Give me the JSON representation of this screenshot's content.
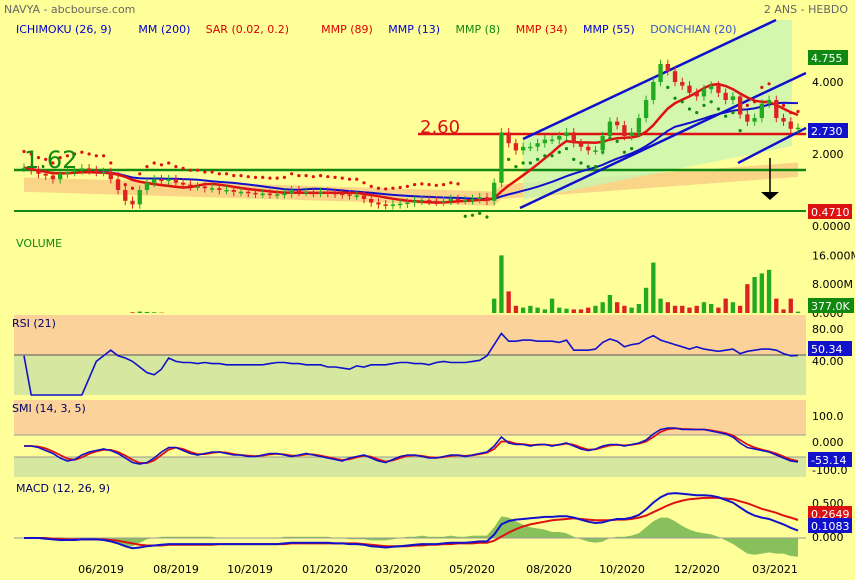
{
  "header": {
    "left": "NAVYA - abcbourse.com",
    "right": "2 ANS - HEBDO"
  },
  "colors": {
    "background": "#ffff99",
    "up": "#22aa22",
    "down": "#dd2222",
    "blue": "#1111cc",
    "red": "#dd1111",
    "green": "#118811",
    "rsi_upper": "#fad29a",
    "rsi_lower": "#d6e8a0"
  },
  "chart_data": [
    {
      "type": "candlestick",
      "indicators": [
        {
          "label": "ICHIMOKU (26, 9)",
          "color": "#0000cc"
        },
        {
          "label": "MM (200)",
          "color": "#0000cc"
        },
        {
          "label": "SAR (0.02, 0.2)",
          "color": "#dd0000"
        },
        {
          "label": "MMP (89)",
          "color": "#dd0000"
        },
        {
          "label": "MMP (13)",
          "color": "#0000cc"
        },
        {
          "label": "MMP (8)",
          "color": "#118811"
        },
        {
          "label": "MMP (34)",
          "color": "#dd0000"
        },
        {
          "label": "MMP (55)",
          "color": "#0000cc"
        },
        {
          "label": "DONCHIAN (20)",
          "color": "#3355cc"
        }
      ],
      "y_ticks": [
        "4.000",
        "2.000",
        "0.0000"
      ],
      "last_price": "2.730",
      "high_label": "4.755",
      "low_label": "0.4710",
      "annotations": [
        "1.62",
        "2.60"
      ],
      "x_ticks": [
        "06/2019",
        "08/2019",
        "10/2019",
        "01/2020",
        "03/2020",
        "05/2020",
        "08/2020",
        "10/2020",
        "12/2020",
        "03/2021"
      ],
      "close": [
        1.62,
        1.55,
        1.45,
        1.4,
        1.3,
        1.45,
        1.5,
        1.55,
        1.6,
        1.55,
        1.5,
        1.5,
        1.3,
        1.0,
        0.7,
        0.6,
        1.0,
        1.2,
        1.3,
        1.25,
        1.3,
        1.2,
        1.15,
        1.1,
        1.1,
        1.05,
        1.05,
        1.0,
        1.0,
        0.95,
        0.95,
        0.92,
        0.9,
        0.9,
        0.88,
        0.88,
        0.9,
        1.0,
        0.95,
        0.95,
        0.92,
        0.95,
        0.92,
        0.9,
        0.88,
        0.85,
        0.85,
        0.75,
        0.65,
        0.6,
        0.58,
        0.6,
        0.62,
        0.65,
        0.7,
        0.72,
        0.7,
        0.68,
        0.7,
        0.75,
        0.72,
        0.72,
        0.75,
        0.8,
        0.7,
        1.2,
        2.6,
        2.3,
        2.1,
        2.2,
        2.2,
        2.3,
        2.4,
        2.4,
        2.5,
        2.6,
        2.3,
        2.2,
        2.1,
        2.1,
        2.5,
        2.9,
        2.8,
        2.5,
        2.6,
        3.0,
        3.5,
        4.0,
        4.5,
        4.3,
        4.0,
        3.9,
        3.7,
        3.6,
        3.8,
        3.9,
        3.7,
        3.5,
        3.6,
        3.1,
        2.9,
        3.0,
        3.4,
        3.5,
        3.0,
        2.9,
        2.7,
        2.73
      ],
      "volume": [
        0,
        0,
        0,
        0,
        0,
        0,
        0,
        0,
        0,
        0,
        0,
        0,
        0,
        0,
        0,
        0.2,
        0.4,
        0.3,
        0.2,
        0.1,
        0,
        0,
        0,
        0,
        0,
        0,
        0,
        0,
        0,
        0,
        0,
        0,
        0,
        0,
        0,
        0,
        0,
        0,
        0,
        0,
        0,
        0,
        0,
        0,
        0,
        0,
        0,
        0,
        0,
        0,
        0,
        0,
        0,
        0,
        0,
        0,
        0,
        0,
        0,
        0,
        0,
        0,
        0,
        0,
        0,
        4.0,
        16.0,
        6.0,
        2.0,
        1.5,
        2.0,
        1.5,
        1.0,
        4.0,
        1.5,
        1.2,
        1.0,
        1.0,
        1.5,
        2.0,
        3.0,
        5.0,
        3.0,
        2.0,
        1.5,
        2.5,
        7.0,
        14.0,
        4.0,
        3.0,
        2.0,
        2.0,
        1.5,
        2.0,
        3.0,
        2.5,
        1.5,
        4.0,
        3.0,
        2.0,
        8.0,
        10.0,
        11.0,
        12.0,
        4.0,
        1.0,
        4.0,
        0.377
      ],
      "volume_ticks": [
        "16.000M",
        "8.000M",
        "0.000"
      ],
      "volume_last": "377.0K",
      "volume_title": "VOLUME"
    },
    {
      "type": "line",
      "title": "RSI (21)",
      "y_ticks": [
        "80.00",
        "40.00"
      ],
      "last": "50.34",
      "values": [
        50,
        15,
        15,
        15,
        15,
        15,
        15,
        15,
        15,
        30,
        45,
        50,
        55,
        50,
        48,
        45,
        40,
        35,
        33,
        38,
        48,
        45,
        44,
        44,
        43,
        44,
        43,
        43,
        42,
        42,
        42,
        42,
        42,
        42,
        43,
        44,
        44,
        43,
        43,
        42,
        42,
        42,
        40,
        40,
        39,
        38,
        41,
        40,
        42,
        42,
        42,
        43,
        44,
        44,
        43,
        43,
        42,
        44,
        45,
        44,
        44,
        44,
        45,
        46,
        50,
        60,
        70,
        63,
        63,
        64,
        64,
        63,
        63,
        63,
        62,
        64,
        55,
        55,
        55,
        56,
        62,
        65,
        63,
        58,
        60,
        61,
        65,
        68,
        64,
        62,
        60,
        58,
        56,
        58,
        56,
        55,
        54,
        55,
        56,
        52,
        54,
        55,
        56,
        56,
        55,
        52,
        50,
        50.34
      ]
    },
    {
      "type": "line",
      "title": "SMI (14, 3, 5)",
      "y_ticks": [
        "100.0",
        "0.000",
        "-100.0"
      ],
      "last": "-53.14",
      "series": [
        {
          "name": "SMI",
          "values": [
            0,
            0,
            -5,
            -15,
            -25,
            -40,
            -50,
            -45,
            -30,
            -20,
            -15,
            -10,
            -15,
            -25,
            -40,
            -55,
            -60,
            -55,
            -40,
            -20,
            -5,
            -5,
            -15,
            -25,
            -30,
            -25,
            -20,
            -20,
            -25,
            -30,
            -30,
            -35,
            -35,
            -30,
            -25,
            -25,
            -30,
            -35,
            -30,
            -25,
            -30,
            -35,
            -40,
            -45,
            -50,
            -40,
            -35,
            -30,
            -40,
            -50,
            -55,
            -45,
            -35,
            -30,
            -30,
            -35,
            -40,
            -40,
            -35,
            -30,
            -30,
            -35,
            -30,
            -25,
            -20,
            0,
            30,
            10,
            5,
            5,
            0,
            5,
            5,
            0,
            5,
            10,
            0,
            -10,
            -15,
            -10,
            0,
            5,
            5,
            0,
            5,
            10,
            20,
            40,
            55,
            60,
            60,
            55,
            55,
            55,
            55,
            50,
            45,
            40,
            30,
            10,
            -5,
            -10,
            -15,
            -20,
            -30,
            -40,
            -50,
            -53.14
          ]
        },
        {
          "name": "Signal",
          "values": [
            0,
            0,
            -2,
            -8,
            -18,
            -30,
            -42,
            -46,
            -38,
            -26,
            -18,
            -13,
            -13,
            -20,
            -32,
            -46,
            -56,
            -57,
            -48,
            -30,
            -12,
            -5,
            -10,
            -20,
            -27,
            -27,
            -23,
            -20,
            -22,
            -27,
            -30,
            -32,
            -34,
            -32,
            -28,
            -26,
            -28,
            -32,
            -32,
            -28,
            -28,
            -32,
            -37,
            -42,
            -47,
            -44,
            -38,
            -32,
            -36,
            -45,
            -52,
            -48,
            -40,
            -33,
            -31,
            -33,
            -37,
            -39,
            -37,
            -33,
            -31,
            -33,
            -31,
            -27,
            -22,
            -10,
            15,
            15,
            8,
            6,
            3,
            4,
            5,
            2,
            4,
            8,
            4,
            -5,
            -12,
            -11,
            -4,
            2,
            4,
            2,
            4,
            8,
            15,
            30,
            47,
            56,
            59,
            57,
            56,
            55,
            55,
            52,
            48,
            43,
            35,
            20,
            5,
            -5,
            -12,
            -18,
            -25,
            -35,
            -45,
            -50
          ]
        }
      ]
    },
    {
      "type": "line",
      "title": "MACD (12, 26, 9)",
      "y_ticks": [
        "0.500",
        "0.000"
      ],
      "last_macd": "0.1083",
      "last_signal": "0.2649",
      "series": [
        {
          "name": "MACD",
          "values": [
            0,
            0,
            0,
            -0.01,
            -0.02,
            -0.03,
            -0.03,
            -0.03,
            -0.02,
            -0.02,
            -0.02,
            -0.03,
            -0.05,
            -0.08,
            -0.12,
            -0.15,
            -0.14,
            -0.12,
            -0.11,
            -0.1,
            -0.09,
            -0.09,
            -0.09,
            -0.09,
            -0.09,
            -0.09,
            -0.09,
            -0.09,
            -0.09,
            -0.09,
            -0.09,
            -0.09,
            -0.09,
            -0.09,
            -0.09,
            -0.09,
            -0.08,
            -0.07,
            -0.07,
            -0.07,
            -0.07,
            -0.07,
            -0.07,
            -0.08,
            -0.08,
            -0.09,
            -0.09,
            -0.1,
            -0.12,
            -0.13,
            -0.14,
            -0.13,
            -0.12,
            -0.11,
            -0.1,
            -0.09,
            -0.09,
            -0.09,
            -0.08,
            -0.07,
            -0.07,
            -0.07,
            -0.06,
            -0.05,
            -0.05,
            0.05,
            0.2,
            0.25,
            0.27,
            0.28,
            0.29,
            0.3,
            0.31,
            0.31,
            0.32,
            0.32,
            0.3,
            0.27,
            0.24,
            0.22,
            0.23,
            0.26,
            0.28,
            0.28,
            0.3,
            0.34,
            0.42,
            0.52,
            0.6,
            0.65,
            0.66,
            0.65,
            0.64,
            0.63,
            0.63,
            0.62,
            0.6,
            0.56,
            0.52,
            0.45,
            0.38,
            0.33,
            0.3,
            0.28,
            0.24,
            0.2,
            0.15,
            0.1083
          ]
        },
        {
          "name": "Signal",
          "values": [
            0,
            0,
            0,
            0,
            -0.01,
            -0.01,
            -0.02,
            -0.02,
            -0.02,
            -0.02,
            -0.02,
            -0.02,
            -0.03,
            -0.04,
            -0.06,
            -0.08,
            -0.1,
            -0.11,
            -0.11,
            -0.11,
            -0.1,
            -0.1,
            -0.1,
            -0.1,
            -0.1,
            -0.1,
            -0.1,
            -0.09,
            -0.09,
            -0.09,
            -0.09,
            -0.09,
            -0.09,
            -0.09,
            -0.09,
            -0.09,
            -0.09,
            -0.08,
            -0.08,
            -0.08,
            -0.08,
            -0.08,
            -0.08,
            -0.08,
            -0.08,
            -0.08,
            -0.08,
            -0.09,
            -0.1,
            -0.11,
            -0.12,
            -0.12,
            -0.12,
            -0.12,
            -0.11,
            -0.11,
            -0.1,
            -0.1,
            -0.09,
            -0.09,
            -0.08,
            -0.08,
            -0.08,
            -0.07,
            -0.07,
            -0.04,
            0.02,
            0.08,
            0.13,
            0.17,
            0.2,
            0.22,
            0.24,
            0.26,
            0.27,
            0.28,
            0.29,
            0.28,
            0.27,
            0.26,
            0.26,
            0.26,
            0.27,
            0.27,
            0.28,
            0.3,
            0.33,
            0.38,
            0.43,
            0.48,
            0.52,
            0.55,
            0.57,
            0.58,
            0.59,
            0.59,
            0.59,
            0.58,
            0.57,
            0.54,
            0.51,
            0.47,
            0.43,
            0.4,
            0.37,
            0.33,
            0.3,
            0.2649
          ]
        }
      ]
    }
  ]
}
